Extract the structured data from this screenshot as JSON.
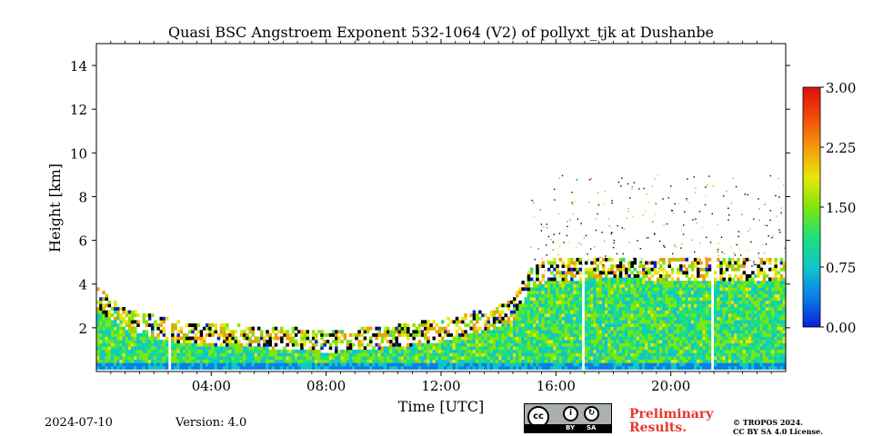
{
  "chart_data": {
    "type": "heatmap",
    "title": "Quasi BSC Angstroem Exponent 532-1064 (V2) of pollyxt_tjk at Dushanbe",
    "xlabel": "Time [UTC]",
    "ylabel": "Height [km]",
    "xlim": [
      0,
      24
    ],
    "ylim": [
      0,
      15
    ],
    "x_ticks": [
      {
        "value": 4,
        "label": "04:00"
      },
      {
        "value": 8,
        "label": "08:00"
      },
      {
        "value": 12,
        "label": "12:00"
      },
      {
        "value": 16,
        "label": "16:00"
      },
      {
        "value": 20,
        "label": "20:00"
      }
    ],
    "y_ticks": [
      {
        "value": 2,
        "label": "2"
      },
      {
        "value": 4,
        "label": "4"
      },
      {
        "value": 6,
        "label": "6"
      },
      {
        "value": 8,
        "label": "8"
      },
      {
        "value": 10,
        "label": "10"
      },
      {
        "value": 12,
        "label": "12"
      },
      {
        "value": 14,
        "label": "14"
      }
    ],
    "colorbar": {
      "range": [
        0,
        3
      ],
      "ticks": [
        {
          "value": 0,
          "label": "0.00"
        },
        {
          "value": 0.75,
          "label": "0.75"
        },
        {
          "value": 1.5,
          "label": "1.50"
        },
        {
          "value": 2.25,
          "label": "2.25"
        },
        {
          "value": 3,
          "label": "3.00"
        }
      ],
      "colors": [
        "#0a1fd6",
        "#0b7ee8",
        "#10c6c8",
        "#1ee07a",
        "#7fe60c",
        "#e8e60c",
        "#f59a0c",
        "#f04a0c",
        "#e00e0e"
      ]
    },
    "layer_top_km": [
      {
        "t": 0,
        "h": 3.2
      },
      {
        "t": 1,
        "h": 2.3
      },
      {
        "t": 2,
        "h": 1.9
      },
      {
        "t": 3,
        "h": 1.6
      },
      {
        "t": 4,
        "h": 1.5
      },
      {
        "t": 6,
        "h": 1.4
      },
      {
        "t": 8,
        "h": 1.2
      },
      {
        "t": 10,
        "h": 1.4
      },
      {
        "t": 12,
        "h": 1.7
      },
      {
        "t": 13.5,
        "h": 2.2
      },
      {
        "t": 14.5,
        "h": 2.6
      },
      {
        "t": 15.2,
        "h": 4.3
      },
      {
        "t": 16,
        "h": 4.5
      },
      {
        "t": 18,
        "h": 4.6
      },
      {
        "t": 20,
        "h": 4.5
      },
      {
        "t": 22,
        "h": 4.5
      },
      {
        "t": 24,
        "h": 4.5
      }
    ],
    "data_gaps_utc": [
      2.55,
      16.95,
      21.45
    ],
    "typical_value_in_layer": 1.2
  },
  "footer": {
    "date": "2024-07-10",
    "version": "Version: 4.0",
    "preliminary_line1": "Preliminary",
    "preliminary_line2": "Results.",
    "copyright_line1": "© TROPOS 2024.",
    "copyright_line2": "CC BY SA 4.0 License.",
    "license_badge": {
      "cc": "cc",
      "by": "BY",
      "sa": "SA"
    }
  }
}
